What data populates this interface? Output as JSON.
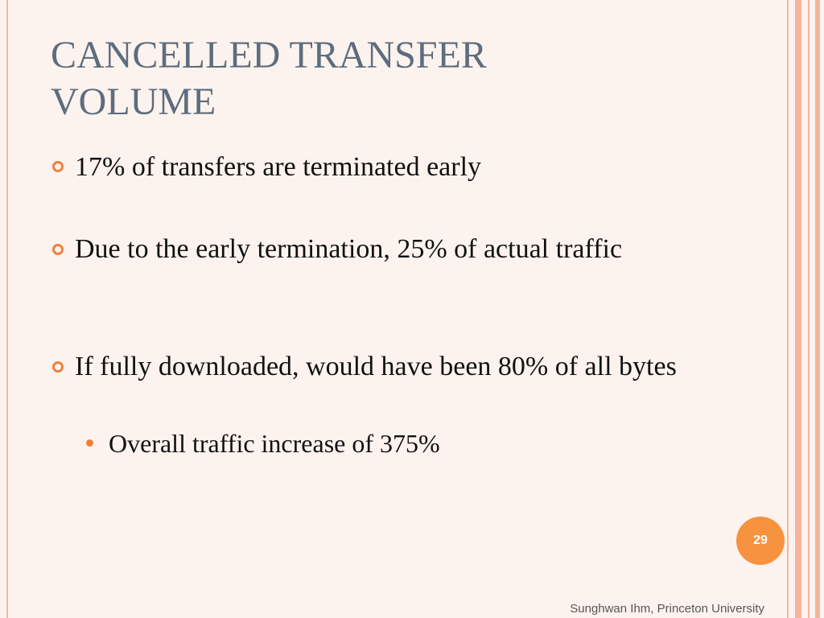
{
  "title": "CANCELLED TRANSFER VOLUME",
  "bullets": [
    {
      "text": "17% of transfers are terminated early",
      "sub": []
    },
    {
      "text": "Due to the early termination, 25% of actual traffic",
      "sub": []
    },
    {
      "text": "If fully downloaded, would have been 80% of all bytes",
      "sub": [
        "Overall traffic increase of 375%"
      ]
    }
  ],
  "page_number": "29",
  "footer": "Sunghwan Ihm, Princeton University"
}
